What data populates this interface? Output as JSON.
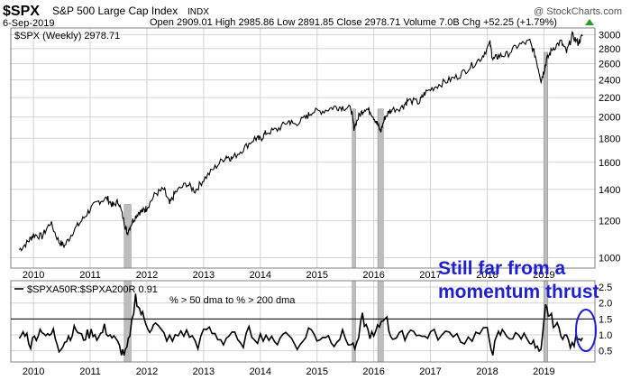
{
  "header": {
    "symbol": "$SPX",
    "name": "S&P 500 Large Cap Index",
    "exchange": "INDX",
    "date": "6-Sep-2019",
    "quote": "Open 2909.01  High 2985.86  Low 2891.85  Close 2978.71  Volume 7.0B  Chg +52.25 (+1.79%)",
    "source": "@ StockCharts.com",
    "arrow_color": "#2a9a2a"
  },
  "chart_data": [
    {
      "type": "line",
      "series_label": "$SPX (Weekly) 2978.71",
      "scale": "log",
      "ylim": [
        950,
        3100
      ],
      "yticks": [
        1000,
        1200,
        1400,
        1600,
        1800,
        2000,
        2200,
        2400,
        2600,
        2800,
        3000
      ],
      "xlim": [
        2009.6,
        2019.9
      ],
      "xticks": [
        2010,
        2011,
        2012,
        2013,
        2014,
        2015,
        2016,
        2017,
        2018,
        2019
      ],
      "grid": true,
      "x": [
        2009.75,
        2009.9,
        2010.0,
        2010.15,
        2010.3,
        2010.45,
        2010.55,
        2010.7,
        2010.85,
        2011.0,
        2011.15,
        2011.3,
        2011.4,
        2011.5,
        2011.6,
        2011.65,
        2011.75,
        2011.85,
        2011.95,
        2012.0,
        2012.15,
        2012.3,
        2012.4,
        2012.5,
        2012.7,
        2012.85,
        2013.0,
        2013.2,
        2013.4,
        2013.5,
        2013.7,
        2013.9,
        2014.0,
        2014.1,
        2014.3,
        2014.5,
        2014.6,
        2014.8,
        2014.9,
        2015.1,
        2015.3,
        2015.45,
        2015.6,
        2015.65,
        2015.75,
        2015.85,
        2015.95,
        2016.05,
        2016.12,
        2016.2,
        2016.3,
        2016.5,
        2016.6,
        2016.8,
        2016.9,
        2017.1,
        2017.3,
        2017.5,
        2017.7,
        2017.9,
        2018.05,
        2018.1,
        2018.2,
        2018.35,
        2018.55,
        2018.75,
        2018.85,
        2018.95,
        2019.0,
        2019.05,
        2019.15,
        2019.3,
        2019.4,
        2019.5,
        2019.6,
        2019.68
      ],
      "y": [
        1040,
        1080,
        1120,
        1110,
        1190,
        1080,
        1060,
        1140,
        1200,
        1270,
        1320,
        1340,
        1290,
        1320,
        1190,
        1130,
        1200,
        1250,
        1260,
        1280,
        1370,
        1400,
        1300,
        1380,
        1440,
        1390,
        1470,
        1560,
        1650,
        1630,
        1710,
        1800,
        1790,
        1850,
        1880,
        1960,
        1930,
        1990,
        2050,
        2060,
        2100,
        2100,
        2080,
        1900,
        2020,
        2090,
        2050,
        1950,
        1860,
        2000,
        2070,
        2100,
        2170,
        2150,
        2250,
        2330,
        2390,
        2450,
        2560,
        2680,
        2870,
        2650,
        2700,
        2720,
        2850,
        2900,
        2700,
        2400,
        2510,
        2650,
        2800,
        2900,
        2750,
        2990,
        2880,
        2978.71
      ]
    },
    {
      "type": "line",
      "series_label": "$SPXA50R:$SPXA200R 0.91",
      "annotation": "% > 50 dma to % > 200 dma",
      "ylim": [
        0.15,
        2.7
      ],
      "yticks": [
        0.5,
        1.0,
        1.5,
        2.0,
        2.5
      ],
      "threshold": 1.5,
      "xticks": [
        2010,
        2011,
        2012,
        2013,
        2014,
        2015,
        2016,
        2017,
        2018,
        2019
      ],
      "x": [
        2009.75,
        2009.85,
        2009.95,
        2010.05,
        2010.15,
        2010.25,
        2010.35,
        2010.45,
        2010.55,
        2010.65,
        2010.75,
        2010.85,
        2010.95,
        2011.05,
        2011.15,
        2011.25,
        2011.35,
        2011.45,
        2011.55,
        2011.62,
        2011.7,
        2011.8,
        2011.87,
        2011.95,
        2012.05,
        2012.15,
        2012.3,
        2012.45,
        2012.6,
        2012.75,
        2012.9,
        2013.05,
        2013.2,
        2013.35,
        2013.5,
        2013.65,
        2013.8,
        2013.95,
        2014.1,
        2014.25,
        2014.4,
        2014.55,
        2014.7,
        2014.85,
        2015.0,
        2015.15,
        2015.3,
        2015.45,
        2015.6,
        2015.7,
        2015.8,
        2015.9,
        2016.0,
        2016.1,
        2016.2,
        2016.3,
        2016.4,
        2016.55,
        2016.7,
        2016.85,
        2017.0,
        2017.2,
        2017.4,
        2017.6,
        2017.8,
        2018.0,
        2018.1,
        2018.2,
        2018.3,
        2018.45,
        2018.6,
        2018.75,
        2018.85,
        2018.95,
        2019.03,
        2019.1,
        2019.2,
        2019.3,
        2019.4,
        2019.5,
        2019.6,
        2019.68
      ],
      "y": [
        0.9,
        1.1,
        0.7,
        1.0,
        1.2,
        0.9,
        1.1,
        0.6,
        0.8,
        1.0,
        1.2,
        0.9,
        1.0,
        1.1,
        0.9,
        1.2,
        1.0,
        0.8,
        0.5,
        0.4,
        0.9,
        2.2,
        1.8,
        1.5,
        1.2,
        1.3,
        1.0,
        0.8,
        1.1,
        1.0,
        0.7,
        1.2,
        1.0,
        0.8,
        1.1,
        0.6,
        1.1,
        0.9,
        1.0,
        0.7,
        1.1,
        0.9,
        0.6,
        1.2,
        0.9,
        1.0,
        0.8,
        1.0,
        0.7,
        0.6,
        1.55,
        1.1,
        0.9,
        1.3,
        1.65,
        1.0,
        0.9,
        1.0,
        1.2,
        0.9,
        1.05,
        0.95,
        1.1,
        0.8,
        1.0,
        1.1,
        0.5,
        1.0,
        1.1,
        0.9,
        1.0,
        0.9,
        0.6,
        0.4,
        1.85,
        1.6,
        1.3,
        1.1,
        0.9,
        0.6,
        1.0,
        0.91
      ]
    }
  ],
  "highlight_bands": [
    [
      2011.6,
      2011.72
    ],
    [
      2015.62,
      2015.68
    ],
    [
      2016.07,
      2016.17
    ],
    [
      2019.0,
      2019.07
    ]
  ],
  "callout": {
    "line1": "Still far from a",
    "line2": "momentum thrust",
    "color": "#1f1fd6"
  },
  "colors": {
    "price": "#000000",
    "band": "#bdbdbd",
    "grid": "#d3d3d3",
    "axis": "#808080",
    "ellipse": "#1f1fd6"
  }
}
